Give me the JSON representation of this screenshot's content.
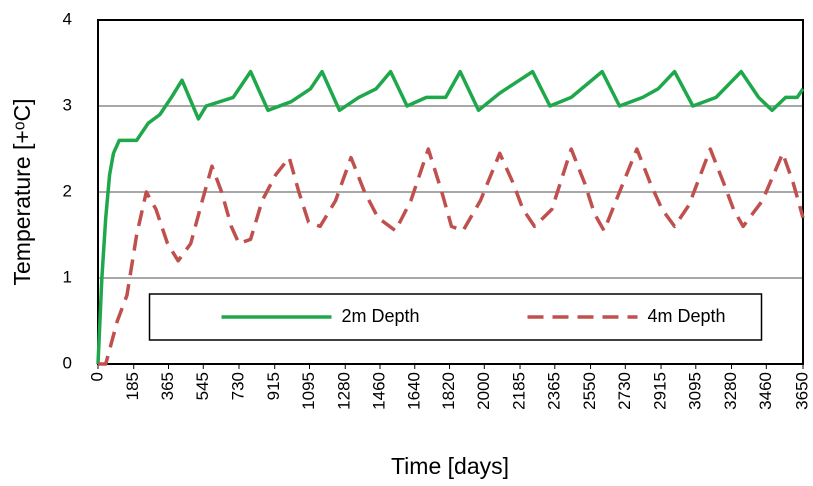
{
  "chart_data": {
    "type": "line",
    "xlabel": "Time [days]",
    "ylabel": "Temperature [+ᵒC]",
    "xlim": [
      0,
      3650
    ],
    "xticks": [
      0,
      185,
      365,
      545,
      730,
      915,
      1095,
      1280,
      1460,
      1640,
      1820,
      2000,
      2185,
      2365,
      2550,
      2730,
      2915,
      3095,
      3280,
      3460,
      3650
    ],
    "ylim": [
      0,
      4
    ],
    "yticks": [
      0,
      1,
      2,
      3,
      4
    ],
    "grid": true,
    "legend": "lower center",
    "series": [
      {
        "name": "2m Depth",
        "color": "#1fa84b",
        "dash": "solid",
        "x": [
          0,
          20,
          40,
          60,
          80,
          110,
          200,
          260,
          320,
          380,
          435,
          520,
          560,
          700,
          790,
          880,
          1000,
          1100,
          1160,
          1250,
          1350,
          1440,
          1515,
          1600,
          1700,
          1800,
          1875,
          1970,
          2080,
          2250,
          2340,
          2450,
          2610,
          2700,
          2820,
          2900,
          2985,
          3080,
          3200,
          3330,
          3420,
          3490,
          3560,
          3620,
          3650
        ],
        "values": [
          0,
          1.0,
          1.7,
          2.2,
          2.45,
          2.6,
          2.6,
          2.8,
          2.9,
          3.1,
          3.3,
          2.85,
          3.0,
          3.1,
          3.4,
          2.95,
          3.05,
          3.2,
          3.4,
          2.95,
          3.1,
          3.2,
          3.4,
          3.0,
          3.1,
          3.1,
          3.4,
          2.95,
          3.15,
          3.4,
          3.0,
          3.1,
          3.4,
          3.0,
          3.1,
          3.2,
          3.4,
          3.0,
          3.1,
          3.4,
          3.1,
          2.95,
          3.1,
          3.1,
          3.2
        ]
      },
      {
        "name": "4m Depth",
        "color": "#c0504d",
        "dash": "dashed",
        "x": [
          0,
          40,
          100,
          150,
          200,
          250,
          300,
          360,
          415,
          480,
          540,
          590,
          640,
          690,
          730,
          790,
          850,
          920,
          990,
          1040,
          1090,
          1150,
          1230,
          1310,
          1380,
          1450,
          1540,
          1620,
          1710,
          1780,
          1830,
          1890,
          1980,
          2080,
          2150,
          2200,
          2260,
          2350,
          2450,
          2520,
          2570,
          2620,
          2700,
          2790,
          2860,
          2920,
          2985,
          3060,
          3170,
          3240,
          3290,
          3340,
          3440,
          3545,
          3600,
          3650
        ],
        "values": [
          0,
          0,
          0.5,
          0.8,
          1.5,
          2.0,
          1.8,
          1.4,
          1.2,
          1.4,
          1.9,
          2.3,
          2.0,
          1.6,
          1.4,
          1.45,
          1.9,
          2.2,
          2.4,
          2.0,
          1.65,
          1.6,
          1.9,
          2.4,
          2.0,
          1.7,
          1.55,
          1.9,
          2.5,
          2.0,
          1.6,
          1.55,
          1.9,
          2.45,
          2.1,
          1.8,
          1.6,
          1.8,
          2.5,
          2.1,
          1.75,
          1.55,
          2.0,
          2.5,
          2.1,
          1.8,
          1.6,
          1.85,
          2.5,
          2.1,
          1.8,
          1.6,
          1.9,
          2.45,
          2.1,
          1.7
        ]
      }
    ]
  }
}
